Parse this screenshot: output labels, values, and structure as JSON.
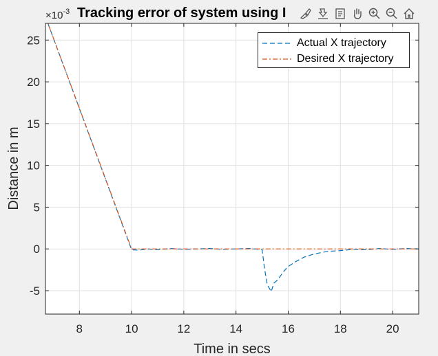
{
  "chart_data": {
    "type": "line",
    "title": "Tracking error of system using I",
    "xlabel": "Time in secs",
    "ylabel": "Distance in m",
    "y_exponent_base": "×10",
    "y_exponent_power": "-3",
    "xlim": [
      6.7,
      21.0
    ],
    "ylim": [
      -7.8,
      27.0
    ],
    "xticks": [
      8,
      10,
      12,
      14,
      16,
      18,
      20
    ],
    "yticks": [
      -5,
      0,
      5,
      10,
      15,
      20,
      25
    ],
    "grid": true,
    "legend_position": "top-right",
    "series": [
      {
        "name": "Actual X trajectory",
        "color": "#0072bd",
        "style": "dashed",
        "x": [
          6.7,
          10.0,
          10.3,
          10.6,
          11.0,
          11.5,
          12.0,
          12.5,
          13.0,
          13.5,
          14.0,
          14.5,
          14.9,
          15.0,
          15.1,
          15.2,
          15.35,
          15.45,
          15.6,
          15.8,
          16.0,
          16.3,
          16.6,
          17.0,
          17.5,
          18.0,
          18.5,
          19.0,
          19.5,
          20.0,
          20.5,
          21.0
        ],
        "y": [
          27.8,
          -0.1,
          -0.15,
          0.0,
          -0.1,
          0.05,
          -0.05,
          0.0,
          0.05,
          -0.05,
          0.0,
          0.05,
          -0.05,
          -0.1,
          -2.5,
          -4.3,
          -5.1,
          -4.1,
          -3.7,
          -2.8,
          -2.1,
          -1.5,
          -1.0,
          -0.6,
          -0.3,
          -0.2,
          -0.05,
          -0.1,
          0.05,
          -0.05,
          0.05,
          0.0
        ]
      },
      {
        "name": "Desired X trajectory",
        "color": "#d95319",
        "style": "dashdot",
        "x": [
          6.7,
          10.0,
          21.0
        ],
        "y": [
          27.8,
          0.0,
          0.0
        ]
      }
    ]
  },
  "toolbar": {
    "icons": [
      "brush-icon",
      "export-icon",
      "datatip-icon",
      "pan-icon",
      "zoom-in-icon",
      "zoom-out-icon",
      "home-icon"
    ]
  }
}
